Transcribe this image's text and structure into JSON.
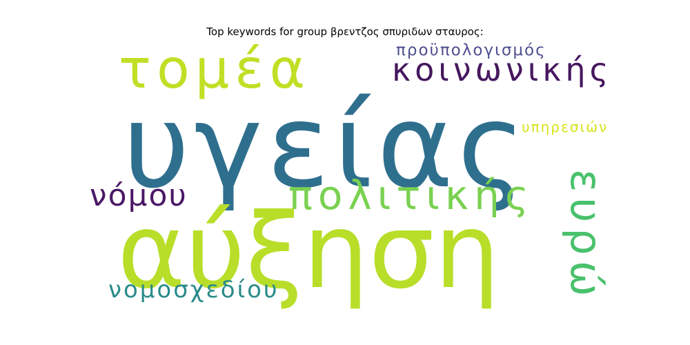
{
  "chart_data": {
    "type": "wordcloud",
    "title": "Top keywords for group βρεντζος σπυριδων σταυρος:",
    "words": [
      {
        "text": "υγείας",
        "color": "#2f6f8e"
      },
      {
        "text": "αύξηση",
        "color": "#b8de29"
      },
      {
        "text": "τομέα",
        "color": "#c0df25"
      },
      {
        "text": "κοινωνικής",
        "color": "#46175e"
      },
      {
        "text": "πολιτικής",
        "color": "#7ad151"
      },
      {
        "text": "ευρώ",
        "color": "#4ac16d"
      },
      {
        "text": "νόμου",
        "color": "#4b1866"
      },
      {
        "text": "νομοσχεδίου",
        "color": "#2a8b8b"
      },
      {
        "text": "προϋπολογισμός",
        "color": "#4d4f8f"
      },
      {
        "text": "υπηρεσιών",
        "color": "#d8e219"
      }
    ]
  }
}
